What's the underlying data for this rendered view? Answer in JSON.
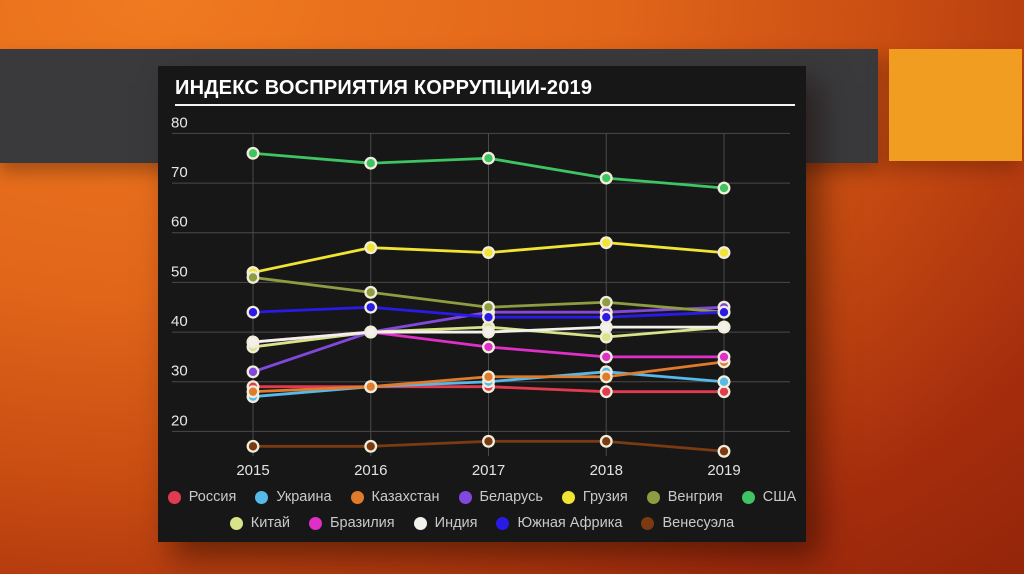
{
  "panel": {
    "title": "ИНДЕКС ВОСПРИЯТИЯ КОРРУПЦИИ-2019"
  },
  "colors": {
    "background_left": "#e2661a",
    "background_right": "#8c2208",
    "band": "#3a3a3c",
    "accent_rect": "#f09d22",
    "panel_bg": "#171717",
    "grid": "#4a4a4a",
    "marker_ring": "#f2ecda",
    "title_text": "#ffffff",
    "axis_text": "#e8e8e8",
    "legend_text": "#c9c9c9"
  },
  "chart_data": {
    "type": "line",
    "title": "ИНДЕКС ВОСПРИЯТИЯ КОРРУПЦИИ-2019",
    "x_labels": [
      "2015",
      "2016",
      "2017",
      "2018",
      "2019"
    ],
    "y_ticks": [
      80,
      70,
      60,
      50,
      40,
      30,
      20
    ],
    "ylim": [
      13,
      82
    ],
    "grid": true,
    "legend_position": "bottom",
    "legend_rows": [
      7,
      5
    ],
    "series": [
      {
        "name": "Россия",
        "color": "#e23b50",
        "values": [
          29,
          29,
          29,
          28,
          28
        ]
      },
      {
        "name": "Украина",
        "color": "#55b9e9",
        "values": [
          27,
          29,
          30,
          32,
          30
        ]
      },
      {
        "name": "Казахстан",
        "color": "#e07b2b",
        "values": [
          28,
          29,
          31,
          31,
          34
        ]
      },
      {
        "name": "Беларусь",
        "color": "#8247dd",
        "values": [
          32,
          40,
          44,
          44,
          45
        ]
      },
      {
        "name": "Грузия",
        "color": "#f2e433",
        "values": [
          52,
          57,
          56,
          58,
          56
        ]
      },
      {
        "name": "Венгрия",
        "color": "#8e9c42",
        "values": [
          51,
          48,
          45,
          46,
          44
        ]
      },
      {
        "name": "США",
        "color": "#3fc463",
        "values": [
          76,
          74,
          75,
          71,
          69
        ]
      },
      {
        "name": "Китай",
        "color": "#d9e388",
        "values": [
          37,
          40,
          41,
          39,
          41
        ]
      },
      {
        "name": "Бразилия",
        "color": "#de2fc8",
        "values": [
          38,
          40,
          37,
          35,
          35
        ]
      },
      {
        "name": "Индия",
        "color": "#f2f1ec",
        "values": [
          38,
          40,
          40,
          41,
          41
        ]
      },
      {
        "name": "Южная Африка",
        "color": "#2a1ae8",
        "values": [
          44,
          45,
          43,
          43,
          44
        ]
      },
      {
        "name": "Венесуэла",
        "color": "#7a3a12",
        "values": [
          17,
          17,
          18,
          18,
          16
        ]
      }
    ]
  }
}
